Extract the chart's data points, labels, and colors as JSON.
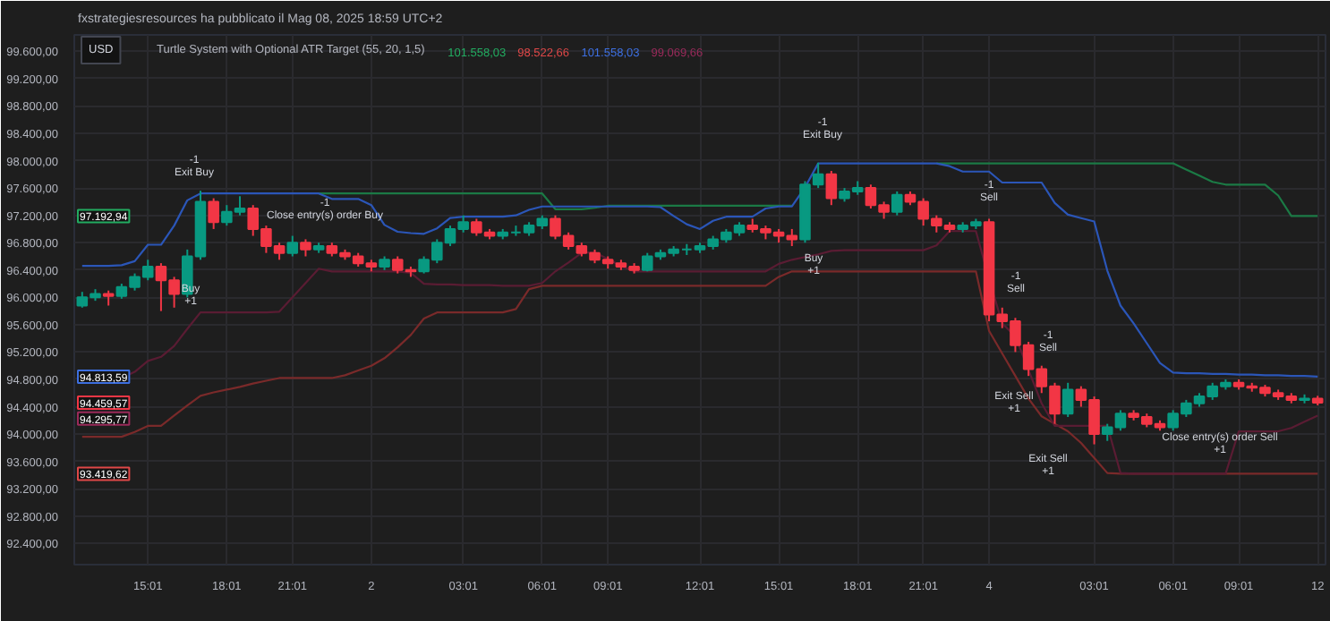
{
  "chart_data": {
    "type": "candlestick",
    "title": "fxstrategiesresources ha pubblicato il Mag 08, 2025 18:59 UTC+2",
    "subtitle": "Turtle System with Optional ATR Target (55, 20, 1,5)",
    "ylim": [
      92090,
      99840
    ],
    "yticks": [
      {
        "value": 92400,
        "label": "92.400,00"
      },
      {
        "value": 92800,
        "label": "92.800,00"
      },
      {
        "value": 93200,
        "label": "93.200,00"
      },
      {
        "value": 93600,
        "label": "93.600,00"
      },
      {
        "value": 94000,
        "label": "94.000,00"
      },
      {
        "value": 94400,
        "label": "94.400,00"
      },
      {
        "value": 94800,
        "label": "94.800,00"
      },
      {
        "value": 95200,
        "label": "95.200,00"
      },
      {
        "value": 95600,
        "label": "95.600,00"
      },
      {
        "value": 96000,
        "label": "96.000,00"
      },
      {
        "value": 96400,
        "label": "96.400,00"
      },
      {
        "value": 96800,
        "label": "96.800,00"
      },
      {
        "value": 97200,
        "label": "97.200,00"
      },
      {
        "value": 97600,
        "label": "97.600,00"
      },
      {
        "value": 98000,
        "label": "98.000,00"
      },
      {
        "value": 98400,
        "label": "98.400,00"
      },
      {
        "value": 98800,
        "label": "98.800,00"
      },
      {
        "value": 99200,
        "label": "99.200,00"
      },
      {
        "value": 99600,
        "label": "99.600,00"
      }
    ],
    "grid": true,
    "categories": [
      null,
      null,
      null,
      null,
      null,
      "15:01",
      null,
      null,
      null,
      null,
      null,
      "18:01",
      null,
      null,
      null,
      null,
      "21:01",
      null,
      null,
      null,
      null,
      null,
      "2",
      null,
      null,
      null,
      null,
      null,
      null,
      "03:01",
      null,
      null,
      null,
      null,
      null,
      "06:01",
      null,
      null,
      null,
      null,
      "09:01",
      null,
      null,
      null,
      null,
      null,
      null,
      "12:01",
      null,
      null,
      null,
      null,
      null,
      "15:01",
      null,
      null,
      null,
      null,
      null,
      "18:01",
      null,
      null,
      null,
      null,
      "21:01",
      null,
      null,
      null,
      null,
      "4",
      null,
      null,
      null,
      null,
      null,
      null,
      null,
      "03:01",
      null,
      null,
      null,
      null,
      null,
      "06:01",
      null,
      null,
      null,
      null,
      "09:01",
      null,
      null,
      null,
      null,
      null,
      "12"
    ],
    "ohlc": [
      [
        95880,
        96080,
        95850,
        96000
      ],
      [
        96000,
        96120,
        95950,
        96050
      ],
      [
        96050,
        96100,
        95880,
        96020
      ],
      [
        96020,
        96200,
        95980,
        96150
      ],
      [
        96150,
        96350,
        96100,
        96300
      ],
      [
        96300,
        96550,
        96250,
        96450
      ],
      [
        96450,
        96500,
        95800,
        96250
      ],
      [
        96250,
        96300,
        95850,
        96050
      ],
      [
        96050,
        96700,
        96000,
        96600
      ],
      [
        96600,
        97560,
        96550,
        97400
      ],
      [
        97400,
        97450,
        97000,
        97100
      ],
      [
        97100,
        97350,
        97050,
        97250
      ],
      [
        97250,
        97480,
        97200,
        97300
      ],
      [
        97300,
        97350,
        96900,
        97000
      ],
      [
        97000,
        97050,
        96650,
        96750
      ],
      [
        96750,
        96800,
        96550,
        96650
      ],
      [
        96650,
        96900,
        96600,
        96800
      ],
      [
        96800,
        96850,
        96600,
        96700
      ],
      [
        96700,
        96800,
        96650,
        96750
      ],
      [
        96750,
        96800,
        96600,
        96650
      ],
      [
        96650,
        96700,
        96550,
        96600
      ],
      [
        96600,
        96650,
        96450,
        96500
      ],
      [
        96500,
        96550,
        96380,
        96450
      ],
      [
        96450,
        96600,
        96400,
        96550
      ],
      [
        96550,
        96600,
        96350,
        96400
      ],
      [
        96400,
        96450,
        96300,
        96380
      ],
      [
        96380,
        96600,
        96350,
        96550
      ],
      [
        96550,
        96850,
        96500,
        96800
      ],
      [
        96800,
        97050,
        96750,
        97000
      ],
      [
        97000,
        97200,
        96950,
        97100
      ],
      [
        97100,
        97150,
        96900,
        96950
      ],
      [
        96950,
        97000,
        96850,
        96900
      ],
      [
        96900,
        97000,
        96850,
        96950
      ],
      [
        96950,
        97050,
        96900,
        96950
      ],
      [
        96950,
        97100,
        96900,
        97050
      ],
      [
        97050,
        97200,
        97000,
        97150
      ],
      [
        97150,
        97200,
        96850,
        96900
      ],
      [
        96900,
        96950,
        96700,
        96750
      ],
      [
        96750,
        96800,
        96600,
        96650
      ],
      [
        96650,
        96700,
        96500,
        96550
      ],
      [
        96550,
        96600,
        96420,
        96500
      ],
      [
        96500,
        96550,
        96400,
        96450
      ],
      [
        96450,
        96500,
        96350,
        96400
      ],
      [
        96400,
        96650,
        96380,
        96600
      ],
      [
        96600,
        96700,
        96550,
        96650
      ],
      [
        96650,
        96750,
        96600,
        96700
      ],
      [
        96700,
        96780,
        96620,
        96700
      ],
      [
        96700,
        96800,
        96650,
        96750
      ],
      [
        96750,
        96900,
        96700,
        96850
      ],
      [
        96850,
        97000,
        96800,
        96950
      ],
      [
        96950,
        97100,
        96900,
        97050
      ],
      [
        97050,
        97150,
        96950,
        97000
      ],
      [
        97000,
        97050,
        96850,
        96950
      ],
      [
        96950,
        97000,
        96800,
        96900
      ],
      [
        96900,
        97000,
        96750,
        96850
      ],
      [
        96850,
        97700,
        96800,
        97650
      ],
      [
        97650,
        97970,
        97600,
        97800
      ],
      [
        97800,
        97850,
        97350,
        97450
      ],
      [
        97450,
        97600,
        97400,
        97550
      ],
      [
        97550,
        97700,
        97500,
        97600
      ],
      [
        97600,
        97650,
        97300,
        97350
      ],
      [
        97350,
        97400,
        97150,
        97250
      ],
      [
        97250,
        97550,
        97200,
        97500
      ],
      [
        97500,
        97550,
        97350,
        97400
      ],
      [
        97400,
        97450,
        97050,
        97150
      ],
      [
        97150,
        97200,
        96950,
        97050
      ],
      [
        97050,
        97100,
        96950,
        97000
      ],
      [
        97000,
        97100,
        96950,
        97050
      ],
      [
        97050,
        97150,
        97000,
        97100
      ],
      [
        97100,
        97150,
        95650,
        95750
      ],
      [
        95750,
        95850,
        95550,
        95650
      ],
      [
        95650,
        95700,
        95200,
        95300
      ],
      [
        95300,
        95350,
        94850,
        94950
      ],
      [
        94950,
        95000,
        94600,
        94700
      ],
      [
        94700,
        94750,
        94150,
        94300
      ],
      [
        94300,
        94750,
        94250,
        94650
      ],
      [
        94650,
        94700,
        94400,
        94500
      ],
      [
        94500,
        94550,
        93850,
        94000
      ],
      [
        94000,
        94150,
        93900,
        94100
      ],
      [
        94100,
        94350,
        94050,
        94300
      ],
      [
        94300,
        94350,
        94200,
        94250
      ],
      [
        94250,
        94300,
        94100,
        94150
      ],
      [
        94150,
        94200,
        94050,
        94100
      ],
      [
        94100,
        94350,
        94050,
        94300
      ],
      [
        94300,
        94500,
        94250,
        94450
      ],
      [
        94450,
        94600,
        94400,
        94550
      ],
      [
        94550,
        94750,
        94500,
        94700
      ],
      [
        94700,
        94800,
        94650,
        94750
      ],
      [
        94750,
        94800,
        94650,
        94700
      ],
      [
        94700,
        94750,
        94620,
        94680
      ],
      [
        94680,
        94720,
        94550,
        94600
      ],
      [
        94600,
        94650,
        94500,
        94550
      ],
      [
        94550,
        94600,
        94450,
        94500
      ],
      [
        94500,
        94580,
        94450,
        94520
      ],
      [
        94520,
        94560,
        94420,
        94460
      ]
    ],
    "series": [
      {
        "type": "line",
        "color": "#1b7a45",
        "values": [
          null,
          null,
          null,
          null,
          null,
          null,
          null,
          null,
          null,
          null,
          null,
          null,
          null,
          null,
          null,
          null,
          null,
          null,
          97520,
          97520,
          97520,
          97520,
          97520,
          97520,
          97520,
          97520,
          97520,
          97520,
          97520,
          97520,
          97520,
          97520,
          97520,
          97520,
          97520,
          97520,
          97290,
          97290,
          97290,
          97310,
          97340,
          97340,
          97340,
          97340,
          97340,
          97340,
          97340,
          97340,
          97340,
          97340,
          97340,
          97340,
          97340,
          97340,
          97340,
          null,
          null,
          null,
          null,
          null,
          null,
          null,
          null,
          null,
          null,
          97960,
          97960,
          97960,
          97960,
          97960,
          97960,
          97960,
          97960,
          97960,
          97960,
          97960,
          97960,
          97960,
          97960,
          97960,
          97960,
          97960,
          97960,
          97960,
          97870,
          97780,
          97690,
          97650,
          97650,
          97650,
          97650,
          97490,
          97190,
          97190,
          97190
        ]
      },
      {
        "type": "line",
        "color": "#7a2a2a",
        "values": [
          93960,
          93960,
          93960,
          93960,
          94030,
          94120,
          94120,
          94270,
          94420,
          94560,
          94610,
          94650,
          94690,
          94740,
          94780,
          94820,
          94820,
          94820,
          94820,
          94820,
          94860,
          94930,
          95000,
          95110,
          95270,
          95450,
          95690,
          95780,
          95780,
          95780,
          95780,
          95780,
          95780,
          95830,
          96120,
          96170,
          96170,
          96170,
          96170,
          96170,
          96170,
          96170,
          96170,
          96170,
          96170,
          96170,
          96170,
          96170,
          96170,
          96170,
          96170,
          96170,
          96170,
          96300,
          96380,
          96380,
          96380,
          96380,
          96380,
          96380,
          96380,
          96380,
          96380,
          96380,
          96380,
          96380,
          96380,
          96380,
          96380,
          95510,
          95180,
          94850,
          94520,
          94260,
          94150,
          94040,
          93870,
          93650,
          93430,
          93420,
          93420,
          93420,
          93420,
          93420,
          93420,
          93420,
          93420,
          93420,
          93420,
          93420,
          93420,
          93420,
          93420,
          93420,
          93420
        ]
      },
      {
        "type": "line",
        "color": "#2b56b8",
        "values": [
          96460,
          96460,
          96460,
          96470,
          96530,
          96770,
          96770,
          97050,
          97420,
          97520,
          97520,
          97520,
          97520,
          97520,
          97520,
          97520,
          97520,
          97520,
          97520,
          97440,
          97440,
          97440,
          97350,
          97060,
          96960,
          96940,
          96930,
          97010,
          97160,
          97180,
          97180,
          97180,
          97180,
          97200,
          97280,
          97330,
          97330,
          97330,
          97330,
          97330,
          97330,
          97330,
          97330,
          97330,
          97320,
          97190,
          97070,
          97000,
          97120,
          97180,
          97180,
          97180,
          97300,
          97330,
          97330,
          97610,
          97960,
          97960,
          97960,
          97960,
          97960,
          97960,
          97960,
          97960,
          97960,
          97960,
          97920,
          97840,
          97840,
          97840,
          97680,
          97680,
          97680,
          97680,
          97380,
          97210,
          97160,
          97110,
          96390,
          95880,
          95620,
          95330,
          95040,
          94900,
          94890,
          94890,
          94880,
          94880,
          94870,
          94870,
          94860,
          94860,
          94850,
          94850,
          94840
        ]
      },
      {
        "type": "line",
        "color": "#5a1c33",
        "values": [
          94820,
          94820,
          94820,
          94820,
          94910,
          95070,
          95130,
          95290,
          95540,
          95780,
          95780,
          95780,
          95780,
          95780,
          95780,
          95790,
          96000,
          96210,
          96420,
          96380,
          96380,
          96380,
          96380,
          96380,
          96380,
          96360,
          96200,
          96190,
          96190,
          96180,
          96180,
          96180,
          96170,
          96170,
          96170,
          96210,
          96380,
          96510,
          96650,
          96660,
          96560,
          96460,
          96380,
          96380,
          96380,
          96380,
          96380,
          96380,
          96380,
          96380,
          96380,
          96380,
          96380,
          96490,
          96550,
          96590,
          96630,
          96680,
          96690,
          96690,
          96690,
          96690,
          96690,
          96690,
          96690,
          96760,
          96970,
          96970,
          96970,
          96270,
          95620,
          95430,
          94940,
          94450,
          94120,
          94120,
          94120,
          94120,
          94120,
          93430,
          93420,
          93420,
          93420,
          93420,
          93420,
          93420,
          93420,
          93420,
          94040,
          94040,
          94040,
          94040,
          94090,
          94180,
          94270
        ]
      }
    ],
    "annotations": [
      "USD",
      "101.558,03",
      "98.522,66",
      "101.558,03",
      "99.069,66",
      "97.192,94",
      "94.813,59",
      "94.459,57",
      "94.295,77",
      "93.419,62",
      "-1\nExit Buy",
      "Buy\n+1",
      "-1\nClose entry(s) order Buy",
      "-1\nExit Buy",
      "Buy\n+1",
      "-1\nSell",
      "-1\nSell",
      "-1\nSell",
      "Exit Sell\n+1",
      "Exit Sell\n+1",
      "Close entry(s) order Sell\n+1"
    ]
  }
}
